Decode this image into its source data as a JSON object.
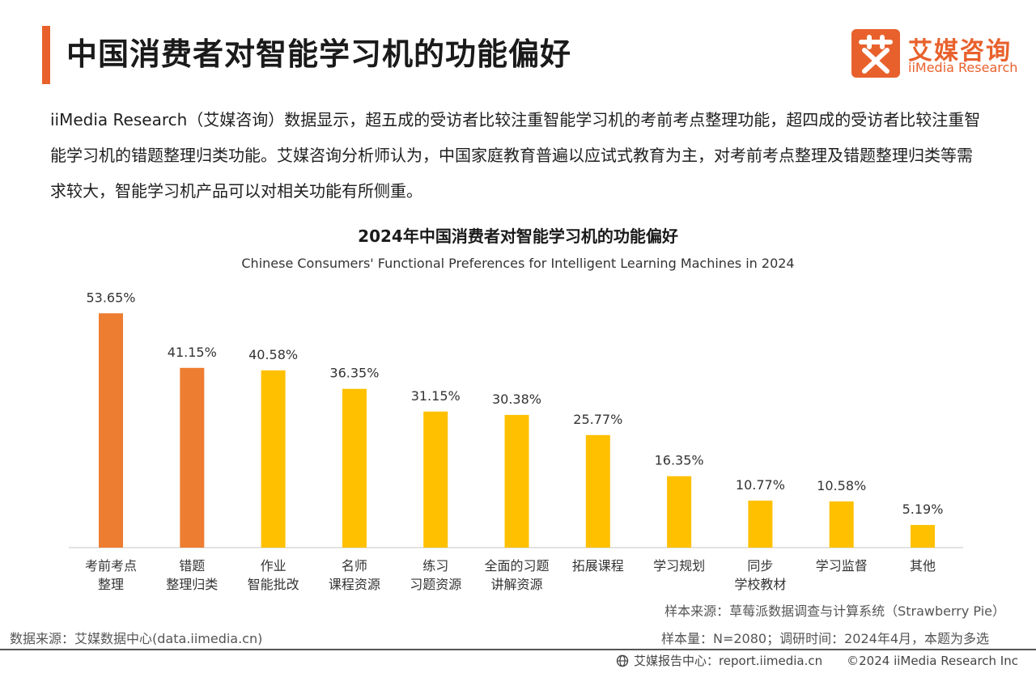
{
  "header": {
    "title": "中国消费者对智能学习机的功能偏好",
    "logo_cn": "艾媒咨询",
    "logo_en": "iiMedia Research",
    "accent_color": "#E8612C"
  },
  "description": "iiMedia Research（艾媒咨询）数据显示，超五成的受访者比较注重智能学习机的考前考点整理功能，超四成的受访者比较注重智能学习机的错题整理归类功能。艾媒咨询分析师认为，中国家庭教育普遍以应试式教育为主，对考前考点整理及错题整理归类等需求较大，智能学习机产品可以对相关功能有所侧重。",
  "chart_data": {
    "type": "bar",
    "title": "2024年中国消费者对智能学习机的功能偏好",
    "subtitle": "Chinese Consumers' Functional Preferences for Intelligent Learning Machines in 2024",
    "categories": [
      [
        "考前考点",
        "整理"
      ],
      [
        "错题",
        "整理归类"
      ],
      [
        "作业",
        "智能批改"
      ],
      [
        "名师",
        "课程资源"
      ],
      [
        "练习",
        "习题资源"
      ],
      [
        "全面的习题",
        "讲解资源"
      ],
      [
        "拓展课程"
      ],
      [
        "学习规划"
      ],
      [
        "同步",
        "学校教材"
      ],
      [
        "学习监督"
      ],
      [
        "其他"
      ]
    ],
    "values": [
      53.65,
      41.15,
      40.58,
      36.35,
      31.15,
      30.38,
      25.77,
      16.35,
      10.77,
      10.58,
      5.19
    ],
    "value_labels": [
      "53.65%",
      "41.15%",
      "40.58%",
      "36.35%",
      "31.15%",
      "30.38%",
      "25.77%",
      "16.35%",
      "10.77%",
      "10.58%",
      "5.19%"
    ],
    "highlight_count": 2,
    "colors": {
      "highlight": "#ED7D31",
      "normal": "#FFC000",
      "axis": "#d9d9d9"
    },
    "ylim": [
      0,
      60
    ],
    "grid": false
  },
  "notes": {
    "sample_source": "样本来源：草莓派数据调查与计算系统（Strawberry Pie）",
    "sample_size": "样本量：N=2080；调研时间：2024年4月，本题为多选",
    "data_source": "数据来源：艾媒数据中心(data.iimedia.cn)"
  },
  "footer": {
    "report_center": "艾媒报告中心：report.iimedia.cn",
    "copyright": "©2024  iiMedia Research  Inc"
  }
}
